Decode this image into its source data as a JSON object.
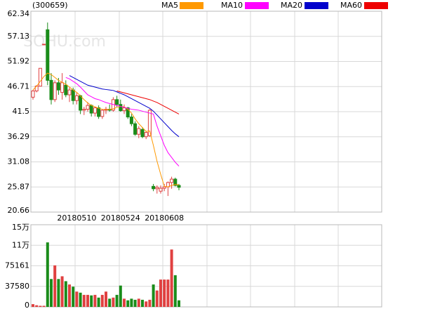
{
  "chart_data": [
    {
      "type": "candlestick",
      "title": "(300659)",
      "watermark": "SOHU.com",
      "up_color": "#e04040",
      "down_color": "#1a8c1a",
      "categories": [
        null,
        null,
        null,
        null,
        null,
        null,
        null,
        null,
        null,
        null,
        null,
        null,
        "20180510",
        null,
        null,
        null,
        null,
        null,
        null,
        null,
        null,
        null,
        null,
        null,
        "20180524",
        null,
        null,
        null,
        null,
        null,
        null,
        null,
        null,
        null,
        null,
        null,
        "20180608",
        null,
        null,
        null,
        null
      ],
      "open": [
        44.5,
        45.8,
        46.8,
        55.5,
        58.5,
        48.0,
        44.0,
        47.5,
        45.5,
        47.0,
        45.0,
        46.0,
        43.8,
        44.8,
        41.8,
        42.0,
        42.8,
        41.2,
        42.3,
        40.5,
        41.8,
        42.0,
        41.8,
        44.0,
        43.0,
        41.7,
        42.3,
        40.4,
        39.0,
        36.8,
        37.8,
        36.3,
        36.5,
        26.0,
        25.5,
        25.0,
        25.6,
        25.9,
        26.8,
        27.5,
        26.2
      ],
      "high": [
        46.0,
        47.0,
        50.5,
        55.5,
        60.0,
        49.5,
        48.0,
        48.5,
        49.5,
        48.0,
        46.5,
        46.5,
        45.5,
        45.0,
        42.5,
        43.5,
        43.0,
        42.5,
        42.8,
        42.0,
        42.5,
        43.0,
        44.5,
        44.8,
        44.0,
        43.0,
        42.5,
        41.0,
        39.5,
        38.5,
        38.3,
        37.5,
        42.0,
        26.5,
        26.2,
        26.2,
        26.5,
        27.0,
        28.0,
        27.8,
        26.5
      ],
      "low": [
        44.0,
        45.5,
        46.8,
        55.5,
        47.0,
        43.0,
        43.5,
        45.0,
        44.0,
        44.5,
        43.5,
        43.0,
        43.0,
        41.0,
        40.8,
        41.5,
        40.5,
        40.5,
        40.0,
        40.0,
        41.0,
        41.5,
        41.5,
        42.5,
        41.5,
        41.0,
        40.0,
        38.5,
        36.5,
        36.0,
        36.0,
        35.8,
        36.3,
        25.0,
        24.5,
        24.5,
        25.0,
        24.0,
        25.5,
        26.0,
        25.2
      ],
      "close": [
        45.8,
        46.8,
        50.5,
        55.5,
        48.0,
        44.0,
        47.5,
        46.0,
        47.5,
        45.0,
        46.0,
        43.8,
        44.8,
        41.8,
        42.0,
        42.8,
        41.2,
        42.3,
        40.5,
        41.8,
        42.0,
        41.8,
        44.0,
        43.0,
        41.7,
        42.3,
        40.4,
        39.0,
        36.8,
        38.0,
        36.3,
        37.2,
        41.8,
        25.5,
        25.8,
        25.6,
        25.9,
        26.8,
        27.5,
        26.2,
        25.8
      ],
      "series": [
        {
          "name": "MA5",
          "color": "#ff9900",
          "values": [
            46.0,
            46.8,
            47.8,
            48.8,
            49.5,
            49.2,
            48.6,
            48.0,
            47.6,
            47.2,
            46.6,
            46.0,
            45.5,
            44.8,
            44.0,
            43.3,
            42.8,
            42.5,
            42.2,
            42.0,
            41.9,
            42.0,
            42.1,
            42.4,
            42.6,
            42.5,
            42.0,
            41.2,
            40.0,
            39.0,
            38.2,
            37.4,
            37.5,
            34.5,
            31.2,
            28.5,
            26.0,
            25.9,
            26.2,
            26.4,
            26.3
          ]
        },
        {
          "name": "MA10",
          "color": "#ff00ff",
          "values": [
            null,
            null,
            null,
            null,
            null,
            null,
            null,
            null,
            null,
            48.6,
            48.3,
            47.8,
            47.3,
            46.6,
            45.8,
            45.0,
            44.6,
            44.2,
            44.0,
            43.7,
            43.4,
            43.2,
            43.0,
            42.8,
            42.6,
            42.4,
            42.2,
            42.0,
            41.9,
            41.8,
            41.6,
            41.4,
            41.2,
            41.0,
            38.5,
            36.5,
            34.5,
            33.0,
            32.0,
            31.0,
            30.2
          ]
        },
        {
          "name": "MA20",
          "color": "#0000cc",
          "values": [
            null,
            null,
            null,
            null,
            null,
            null,
            null,
            null,
            null,
            null,
            49.0,
            48.6,
            48.2,
            47.8,
            47.4,
            47.0,
            46.8,
            46.6,
            46.4,
            46.2,
            46.1,
            46.0,
            45.9,
            45.6,
            45.3,
            45.0,
            44.6,
            44.2,
            43.8,
            43.4,
            43.0,
            42.6,
            42.2,
            41.6,
            40.8,
            40.0,
            39.2,
            38.4,
            37.6,
            36.9,
            36.3
          ]
        },
        {
          "name": "MA60",
          "color": "#ee0000",
          "values": [
            null,
            null,
            null,
            null,
            null,
            null,
            null,
            null,
            null,
            null,
            null,
            null,
            null,
            null,
            null,
            null,
            null,
            null,
            null,
            null,
            null,
            null,
            null,
            45.8,
            45.6,
            45.4,
            45.2,
            45.0,
            44.8,
            44.6,
            44.4,
            44.2,
            44.0,
            43.7,
            43.4,
            43.0,
            42.6,
            42.2,
            41.8,
            41.4,
            41.0
          ]
        }
      ],
      "ylim": [
        20.66,
        62.34
      ],
      "yticks": [
        20.66,
        25.87,
        31.08,
        36.29,
        41.5,
        46.71,
        51.92,
        57.13,
        62.34
      ],
      "grid": true
    },
    {
      "type": "bar",
      "values": [
        5000,
        3000,
        2000,
        2000,
        118000,
        51000,
        76000,
        51000,
        56000,
        47000,
        41000,
        37000,
        28000,
        26000,
        22000,
        22000,
        21000,
        22000,
        17000,
        22000,
        28000,
        15000,
        17000,
        22000,
        39000,
        15000,
        12000,
        15000,
        13000,
        15000,
        13000,
        10000,
        13000,
        41000,
        30000,
        50000,
        50000,
        50000,
        105000,
        58000,
        12000
      ],
      "ylim": [
        0,
        150322
      ],
      "yticks": [
        0,
        37580,
        75161,
        {
          "value": 112741,
          "label": "11万"
        },
        {
          "value": 150322,
          "label": "15万"
        }
      ],
      "grid": true
    }
  ]
}
